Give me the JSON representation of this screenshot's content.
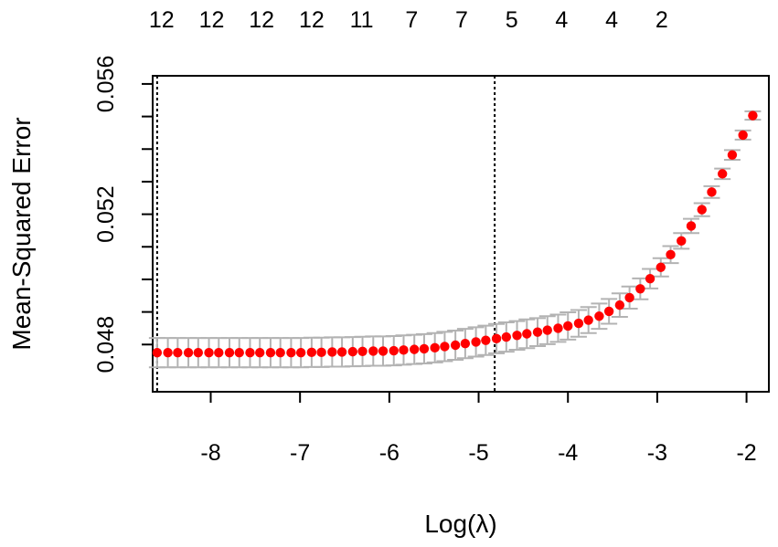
{
  "chart_data": {
    "type": "scatter",
    "xlabel": "Log(λ)",
    "ylabel": "Mean-Squared Error",
    "xlim": [
      -8.65,
      -1.75
    ],
    "ylim": [
      0.04655,
      0.05625
    ],
    "x_ticks": [
      "-8",
      "-7",
      "-6",
      "-5",
      "-4",
      "-3",
      "-2"
    ],
    "x_tick_values": [
      -8,
      -7,
      -6,
      -5,
      -4,
      -3,
      -2
    ],
    "y_ticks": [
      "0.048",
      "0.052",
      "0.056"
    ],
    "y_tick_values": [
      0.048,
      0.052,
      0.056
    ],
    "top_axis_labels": [
      "12",
      "12",
      "12",
      "12",
      "11",
      "7",
      "7",
      "5",
      "4",
      "4",
      "2"
    ],
    "top_axis_positions": [
      -8.55,
      -7.99,
      -7.43,
      -6.87,
      -6.31,
      -5.75,
      -5.19,
      -4.63,
      -4.07,
      -3.51,
      -2.95
    ],
    "vlines": [
      -8.6,
      -4.82
    ],
    "grid": false,
    "legend": "none",
    "point_color": "#ff0000",
    "errorbar_color": "#b3b3b3",
    "series": [
      {
        "x": [
          -8.6,
          -8.48,
          -8.37,
          -8.25,
          -8.14,
          -8.02,
          -7.91,
          -7.79,
          -7.68,
          -7.56,
          -7.45,
          -7.33,
          -7.22,
          -7.1,
          -6.99,
          -6.87,
          -6.76,
          -6.64,
          -6.53,
          -6.41,
          -6.3,
          -6.18,
          -6.07,
          -5.95,
          -5.84,
          -5.72,
          -5.61,
          -5.49,
          -5.38,
          -5.26,
          -5.15,
          -5.03,
          -4.92,
          -4.8,
          -4.69,
          -4.57,
          -4.46,
          -4.34,
          -4.23,
          -4.11,
          -4.0,
          -3.88,
          -3.77,
          -3.65,
          -3.54,
          -3.42,
          -3.31,
          -3.19,
          -3.08,
          -2.96,
          -2.85,
          -2.73,
          -2.62,
          -2.5,
          -2.39,
          -2.27,
          -2.16,
          -2.04,
          -1.93
        ],
        "y": [
          0.04775,
          0.04775,
          0.04775,
          0.04775,
          0.04775,
          0.04775,
          0.04775,
          0.04775,
          0.04775,
          0.04775,
          0.04775,
          0.04775,
          0.04775,
          0.04775,
          0.04775,
          0.04776,
          0.04776,
          0.04777,
          0.04777,
          0.04778,
          0.04779,
          0.0478,
          0.0478,
          0.04781,
          0.04783,
          0.04785,
          0.04787,
          0.0479,
          0.04794,
          0.04798,
          0.04803,
          0.04808,
          0.04813,
          0.04818,
          0.04823,
          0.04828,
          0.04833,
          0.04838,
          0.04844,
          0.0485,
          0.04857,
          0.04865,
          0.04875,
          0.04887,
          0.04902,
          0.04921,
          0.04944,
          0.04971,
          0.05002,
          0.05037,
          0.05076,
          0.05118,
          0.05164,
          0.05214,
          0.05268,
          0.05324,
          0.05382,
          0.05443,
          0.05503
        ],
        "err": [
          0.00045,
          0.00045,
          0.00045,
          0.00045,
          0.00045,
          0.00045,
          0.00045,
          0.00045,
          0.00045,
          0.00045,
          0.00045,
          0.00045,
          0.00045,
          0.00045,
          0.00045,
          0.00045,
          0.00045,
          0.00045,
          0.00045,
          0.00045,
          0.00045,
          0.00045,
          0.00045,
          0.00045,
          0.00045,
          0.00045,
          0.00045,
          0.00045,
          0.00045,
          0.00045,
          0.00045,
          0.00045,
          0.00045,
          0.00045,
          0.00045,
          0.00044,
          0.00044,
          0.00043,
          0.00043,
          0.00042,
          0.00042,
          0.00041,
          0.0004,
          0.00039,
          0.00038,
          0.00036,
          0.00034,
          0.00032,
          0.0003,
          0.00028,
          0.00026,
          0.00024,
          0.00022,
          0.0002,
          0.00018,
          0.00016,
          0.00015,
          0.00014,
          0.00013
        ]
      }
    ]
  }
}
